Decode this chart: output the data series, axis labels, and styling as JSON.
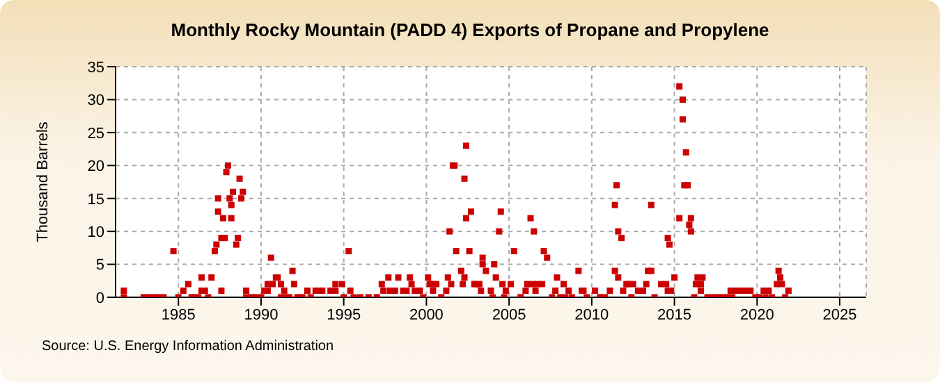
{
  "chart_data": {
    "type": "scatter",
    "title": "Monthly Rocky Mountain (PADD 4) Exports of Propane and Propylene",
    "ylabel": "Thousand Barrels",
    "annotations": [
      "Source: U.S. Energy Information Administration"
    ],
    "x": [
      1981.7,
      1981.7,
      1982.9,
      1983.2,
      1983.5,
      1983.8,
      1984.1,
      1984.7,
      1985.0,
      1985.3,
      1985.6,
      1985.8,
      1986.0,
      1986.2,
      1986.4,
      1986.4,
      1986.6,
      1986.8,
      1987.0,
      1987.2,
      1987.3,
      1987.4,
      1987.4,
      1987.6,
      1987.7,
      1987.6,
      1987.8,
      1987.9,
      1988.0,
      1988.1,
      1988.2,
      1988.2,
      1988.3,
      1988.5,
      1988.6,
      1988.7,
      1988.8,
      1988.9,
      1989.1,
      1989.1,
      1989.4,
      1989.7,
      1990.0,
      1990.2,
      1990.4,
      1990.4,
      1990.6,
      1990.7,
      1990.9,
      1991.0,
      1991.2,
      1991.4,
      1991.2,
      1991.5,
      1991.7,
      1991.9,
      1992.0,
      1992.2,
      1992.5,
      1992.8,
      1993.0,
      1993.3,
      1993.5,
      1993.7,
      1994.2,
      1994.5,
      1994.5,
      1994.9,
      1995.0,
      1995.3,
      1995.4,
      1995.6,
      1996.0,
      1996.5,
      1997.0,
      1997.3,
      1997.4,
      1997.7,
      1997.8,
      1998.1,
      1998.3,
      1998.6,
      1998.8,
      1999.0,
      1999.1,
      1999.3,
      1999.6,
      1999.8,
      2000.1,
      2000.2,
      2000.4,
      2000.6,
      2000.4,
      2000.9,
      2001.2,
      2001.3,
      2001.4,
      2001.5,
      2001.6,
      2001.7,
      2001.8,
      2002.1,
      2002.2,
      2002.3,
      2002.4,
      2002.3,
      2002.4,
      2002.6,
      2002.7,
      2002.9,
      2003.0,
      2003.2,
      2003.3,
      2003.4,
      2003.4,
      2003.6,
      2003.9,
      2004.0,
      2004.1,
      2004.2,
      2004.4,
      2004.5,
      2004.6,
      2004.7,
      2004.8,
      2005.1,
      2005.3,
      2005.7,
      2006.0,
      2006.1,
      2006.3,
      2006.5,
      2006.4,
      2006.6,
      2006.7,
      2007.0,
      2007.1,
      2007.3,
      2007.6,
      2007.8,
      2007.9,
      2008.1,
      2008.3,
      2008.4,
      2008.6,
      2008.8,
      2009.2,
      2009.4,
      2009.5,
      2009.7,
      2010.2,
      2010.5,
      2010.8,
      2011.1,
      2011.4,
      2011.4,
      2011.5,
      2011.6,
      2011.8,
      2011.6,
      2011.9,
      2012.1,
      2012.2,
      2012.4,
      2012.5,
      2012.8,
      2013.1,
      2013.3,
      2013.4,
      2013.6,
      2013.6,
      2013.8,
      2014.2,
      2014.5,
      2014.6,
      2014.6,
      2014.7,
      2014.8,
      2015.0,
      2015.3,
      2015.3,
      2015.5,
      2015.5,
      2015.6,
      2015.7,
      2015.8,
      2015.9,
      2016.0,
      2016.0,
      2016.2,
      2016.3,
      2016.4,
      2016.6,
      2016.7,
      2016.6,
      2017.0,
      2017.3,
      2017.6,
      2017.9,
      2018.2,
      2018.4,
      2018.5,
      2018.6,
      2018.8,
      2019.0,
      2019.3,
      2019.6,
      2019.9,
      2020.1,
      2020.4,
      2020.5,
      2020.7,
      2020.9,
      2021.2,
      2021.3,
      2021.4,
      2021.5,
      2021.7,
      2021.9
    ],
    "values": [
      0,
      1,
      0,
      0,
      0,
      0,
      0,
      7,
      0,
      1,
      2,
      0,
      0,
      0,
      3,
      1,
      1,
      0,
      3,
      7,
      8,
      15,
      13,
      9,
      12,
      1,
      9,
      19,
      20,
      15,
      14,
      12,
      16,
      8,
      9,
      18,
      15,
      16,
      0,
      1,
      0,
      0,
      0,
      1,
      2,
      1,
      6,
      2,
      3,
      3,
      2,
      1,
      0,
      0,
      0,
      4,
      2,
      0,
      0,
      1,
      0,
      1,
      1,
      1,
      1,
      2,
      1,
      2,
      0,
      7,
      1,
      0,
      0,
      0,
      0,
      2,
      1,
      3,
      1,
      1,
      3,
      1,
      1,
      3,
      2,
      1,
      1,
      0,
      3,
      2,
      2,
      2,
      1,
      0,
      1,
      3,
      10,
      2,
      20,
      20,
      7,
      4,
      2,
      18,
      23,
      3,
      12,
      7,
      13,
      2,
      2,
      2,
      1,
      5,
      6,
      4,
      1,
      0,
      5,
      3,
      10,
      13,
      2,
      0,
      1,
      2,
      7,
      0,
      1,
      2,
      12,
      10,
      2,
      1,
      2,
      2,
      7,
      6,
      0,
      1,
      3,
      0,
      2,
      0,
      1,
      0,
      4,
      1,
      1,
      0,
      1,
      0,
      0,
      1,
      4,
      14,
      17,
      10,
      9,
      3,
      1,
      2,
      2,
      0,
      2,
      1,
      1,
      2,
      4,
      14,
      4,
      0,
      2,
      2,
      1,
      9,
      8,
      1,
      3,
      12,
      32,
      30,
      27,
      17,
      22,
      17,
      11,
      10,
      12,
      0,
      2,
      3,
      1,
      3,
      2,
      0,
      0,
      0,
      0,
      0,
      1,
      0,
      1,
      1,
      1,
      1,
      1,
      0,
      0,
      1,
      0,
      1,
      0,
      2,
      4,
      3,
      2,
      0,
      1
    ],
    "color": "#cc0000",
    "marker": "square",
    "xlim": [
      1981.2,
      2026.6
    ],
    "xticks": [
      1985,
      1990,
      1995,
      2000,
      2005,
      2010,
      2015,
      2020,
      2025
    ],
    "ylim": [
      0,
      35
    ],
    "yticks": [
      0,
      5,
      10,
      15,
      20,
      25,
      30,
      35
    ],
    "grid": true
  }
}
